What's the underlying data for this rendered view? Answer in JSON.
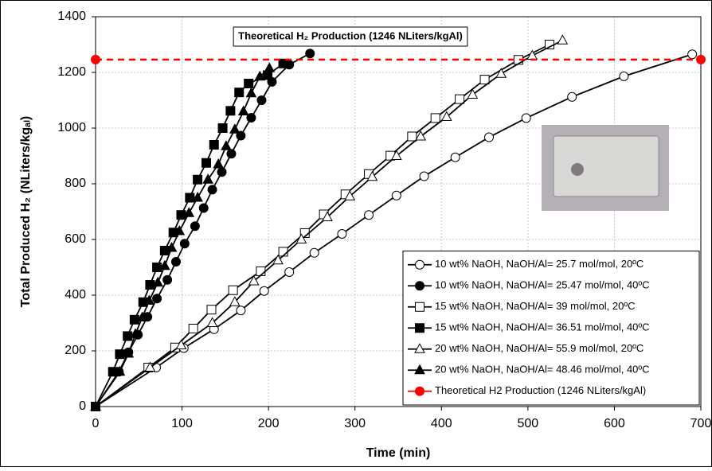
{
  "chart_data": {
    "type": "line",
    "x_label": "Time (min)",
    "y_label": "Total Produced H₂ (NLiters/kgₐₗ)",
    "annotation": "Theoretical H₂ Production (1246 NLiters/kgAl)",
    "xlim": [
      0,
      700
    ],
    "xticks": [
      0,
      100,
      200,
      300,
      400,
      500,
      600,
      700
    ],
    "ylim": [
      0,
      1400
    ],
    "yticks": [
      0,
      200,
      400,
      600,
      800,
      1000,
      1200,
      1400
    ],
    "grid": true,
    "legend_position": "lower right",
    "series": [
      {
        "name": "10 wt% NaOH, NaOH/Al= 25.7 mol/mol, 20ºC",
        "color": "#000000",
        "marker": "circle",
        "filled": false,
        "x": [
          0,
          70,
          102,
          137,
          168,
          195,
          224,
          253,
          285,
          316,
          348,
          380,
          416,
          455,
          498,
          551,
          611,
          690
        ],
        "values": [
          0,
          140,
          210,
          278,
          345,
          415,
          483,
          552,
          620,
          688,
          758,
          827,
          895,
          967,
          1036,
          1112,
          1186,
          1265
        ]
      },
      {
        "name": "10 wt% NaOH, NaOH/Al= 25.47 mol/mol, 40ºC",
        "color": "#000000",
        "marker": "circle",
        "filled": true,
        "x": [
          0,
          27,
          38,
          49,
          60,
          71,
          83,
          93,
          103,
          115,
          125,
          135,
          146,
          157,
          168,
          180,
          192,
          204,
          224,
          248
        ],
        "values": [
          0,
          125,
          195,
          258,
          322,
          388,
          455,
          520,
          585,
          648,
          713,
          779,
          842,
          908,
          973,
          1037,
          1100,
          1166,
          1228,
          1268
        ]
      },
      {
        "name": "15 wt% NaOH, NaOH/Al= 39 mol/mol, 20ºC",
        "color": "#000000",
        "marker": "square",
        "filled": false,
        "x": [
          0,
          61,
          92,
          113,
          134,
          159,
          191,
          217,
          242,
          264,
          289,
          316,
          341,
          366,
          393,
          421,
          450,
          489,
          525
        ],
        "values": [
          0,
          140,
          212,
          280,
          348,
          418,
          486,
          556,
          623,
          690,
          762,
          835,
          901,
          970,
          1036,
          1104,
          1174,
          1245,
          1300
        ]
      },
      {
        "name": "15 wt% NaOH, NaOH/Al= 36.51 mol/mol, 40ºC",
        "color": "#000000",
        "marker": "square",
        "filled": true,
        "x": [
          0,
          20,
          28,
          37,
          45,
          55,
          63,
          71,
          80,
          90,
          99,
          109,
          118,
          128,
          137,
          147,
          156,
          166,
          177,
          199,
          217
        ],
        "values": [
          0,
          125,
          188,
          253,
          312,
          375,
          437,
          500,
          560,
          625,
          688,
          750,
          815,
          875,
          940,
          1000,
          1062,
          1128,
          1160,
          1190,
          1232
        ]
      },
      {
        "name": "20 wt% NaOH, NaOH/Al= 55.9 mol/mol, 20ºC",
        "color": "#000000",
        "marker": "triangle",
        "filled": false,
        "x": [
          0,
          63,
          99,
          135,
          161,
          183,
          211,
          238,
          268,
          294,
          320,
          348,
          376,
          406,
          436,
          469,
          505,
          540
        ],
        "values": [
          0,
          140,
          220,
          300,
          375,
          450,
          525,
          600,
          680,
          755,
          825,
          900,
          970,
          1040,
          1120,
          1195,
          1260,
          1315
        ]
      },
      {
        "name": "20 wt% NaOH, NaOH/Al= 48.46 mol/mol, 40ºC",
        "color": "#000000",
        "marker": "triangle",
        "filled": true,
        "x": [
          0,
          28,
          38,
          46,
          54,
          62,
          72,
          80,
          88,
          97,
          108,
          118,
          130,
          142,
          151,
          161,
          171,
          180,
          190,
          201
        ],
        "values": [
          0,
          125,
          190,
          260,
          320,
          380,
          445,
          505,
          570,
          630,
          695,
          750,
          815,
          870,
          935,
          995,
          1060,
          1125,
          1185,
          1215
        ]
      },
      {
        "name": "Theoretical H2 Production (1246 NLiters/kgAl)",
        "color": "#ff0000",
        "marker": "circle",
        "filled": true,
        "dashed": true,
        "x": [
          0,
          700
        ],
        "values": [
          1246,
          1246
        ]
      }
    ]
  }
}
